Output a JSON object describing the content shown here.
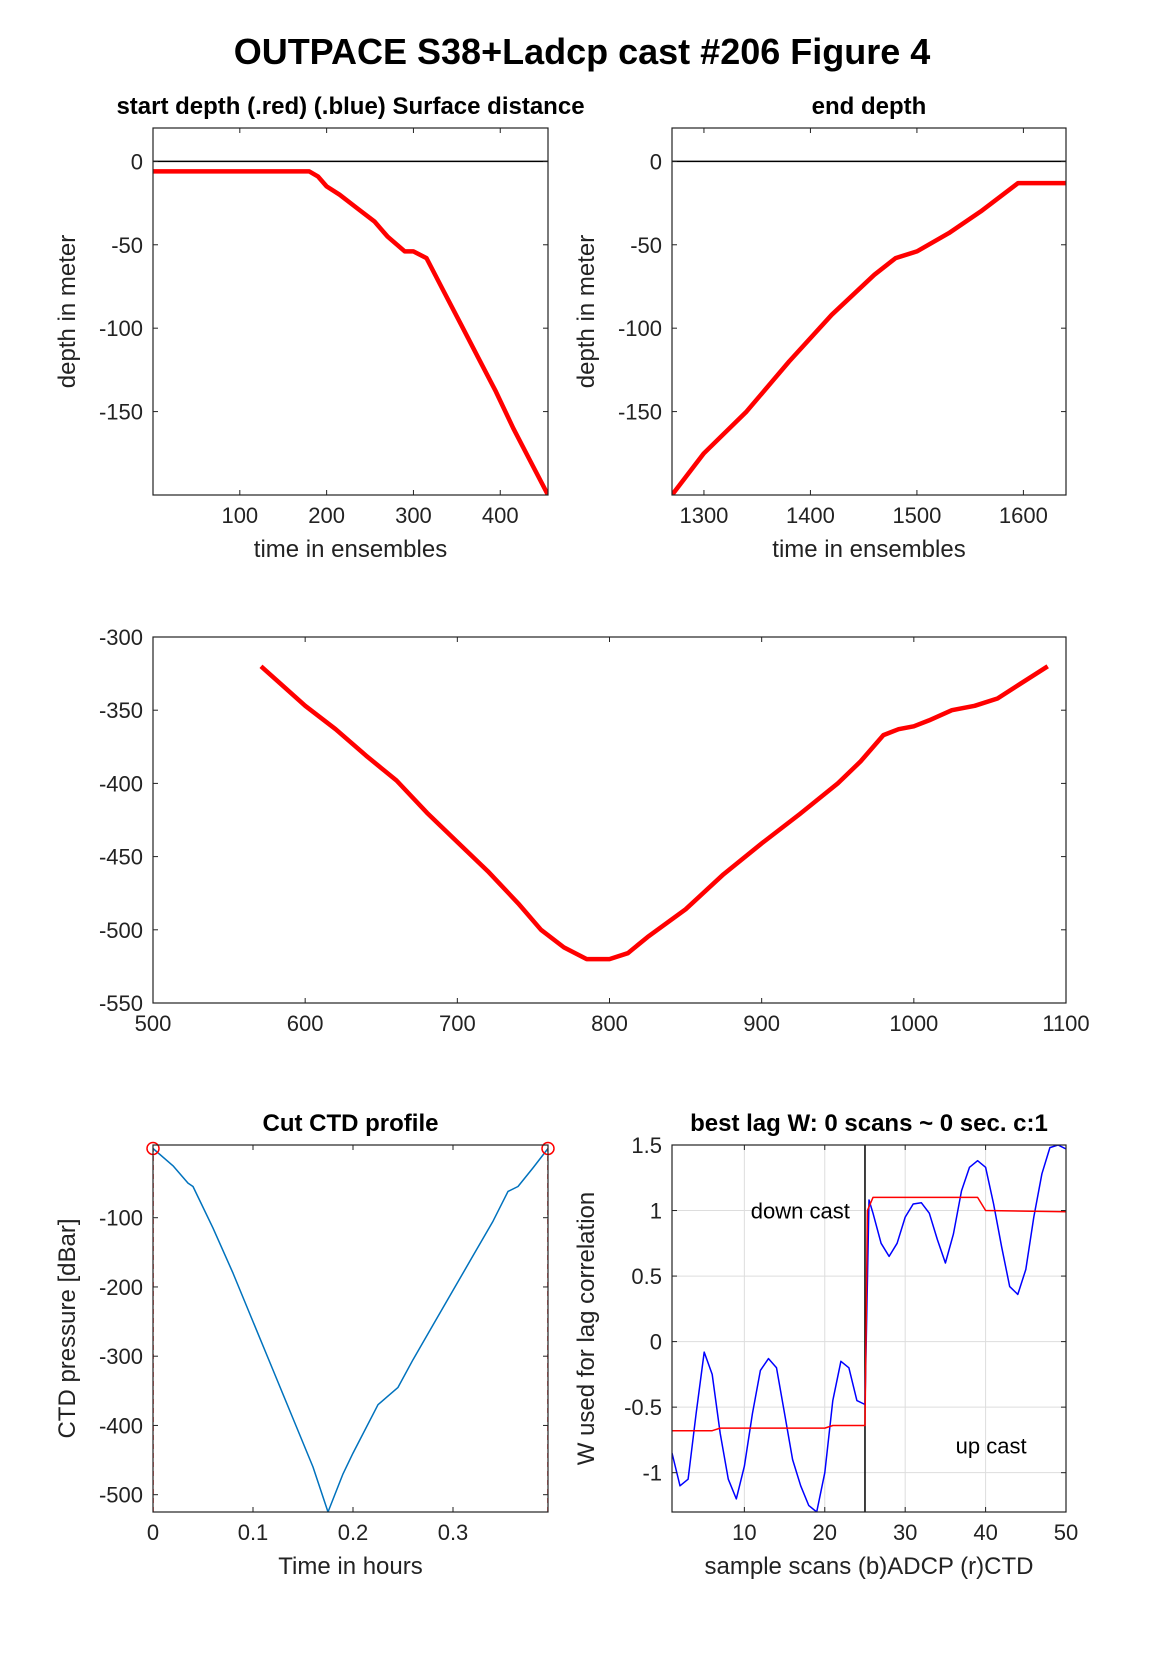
{
  "figure_title": "OUTPACE S38+Ladcp cast #206   Figure 4",
  "chart_data": [
    {
      "type": "line",
      "title": "start depth (.red) (.blue) Surface distance",
      "xlabel": "time in ensembles",
      "ylabel": "depth in meter",
      "xlim": [
        0,
        455
      ],
      "ylim": [
        -200,
        20
      ],
      "xticks": [
        100,
        200,
        300,
        400
      ],
      "yticks": [
        0,
        -50,
        -100,
        -150
      ],
      "hline": 0,
      "series": [
        {
          "color": "#ff0000",
          "x": [
            0,
            180,
            190,
            200,
            215,
            235,
            255,
            270,
            290,
            300,
            315,
            335,
            355,
            375,
            395,
            415,
            435,
            455
          ],
          "y": [
            -6,
            -6,
            -9,
            -15,
            -20,
            -28,
            -36,
            -45,
            -54,
            -54,
            -58,
            -78,
            -98,
            -118,
            -138,
            -160,
            -180,
            -200
          ]
        }
      ]
    },
    {
      "type": "line",
      "title": "end depth",
      "xlabel": "time in ensembles",
      "ylabel": "depth in meter",
      "xlim": [
        1270,
        1640
      ],
      "ylim": [
        -200,
        20
      ],
      "xticks": [
        1300,
        1400,
        1500,
        1600
      ],
      "yticks": [
        0,
        -50,
        -100,
        -150
      ],
      "hline": 0,
      "series": [
        {
          "color": "#ff0000",
          "x": [
            1270,
            1300,
            1340,
            1380,
            1420,
            1460,
            1480,
            1500,
            1530,
            1560,
            1595,
            1640
          ],
          "y": [
            -200,
            -175,
            -150,
            -120,
            -92,
            -68,
            -58,
            -54,
            -43,
            -30,
            -13,
            -13
          ]
        }
      ]
    },
    {
      "type": "line",
      "title": "",
      "xlabel": "",
      "ylabel": "",
      "xlim": [
        500,
        1100
      ],
      "ylim": [
        -550,
        -300
      ],
      "xticks": [
        500,
        600,
        700,
        800,
        900,
        1000,
        1100
      ],
      "yticks": [
        -300,
        -350,
        -400,
        -450,
        -500,
        -550
      ],
      "series": [
        {
          "color": "#ff0000",
          "x": [
            571,
            585,
            600,
            620,
            640,
            660,
            680,
            700,
            720,
            740,
            755,
            770,
            785,
            800,
            812,
            825,
            850,
            875,
            900,
            925,
            950,
            965,
            980,
            990,
            1000,
            1010,
            1025,
            1040,
            1055,
            1070,
            1088
          ],
          "y": [
            -320,
            -333,
            -347,
            -363,
            -381,
            -398,
            -420,
            -440,
            -460,
            -482,
            -500,
            -512,
            -520,
            -520,
            -516,
            -505,
            -486,
            -462,
            -441,
            -421,
            -400,
            -385,
            -367,
            -363,
            -361,
            -357,
            -350,
            -347,
            -342,
            -332,
            -320
          ]
        }
      ]
    },
    {
      "type": "line",
      "title": "Cut CTD profile",
      "xlabel": "Time in hours",
      "ylabel": "CTD pressure [dBar]",
      "xlim": [
        0,
        0.395
      ],
      "ylim": [
        -525,
        5
      ],
      "xticks": [
        0,
        0.1,
        0.2,
        0.3
      ],
      "yticks": [
        -100,
        -200,
        -300,
        -400,
        -500
      ],
      "series": [
        {
          "color": "#0072bd",
          "x": [
            0,
            0.02,
            0.035,
            0.04,
            0.06,
            0.08,
            0.1,
            0.12,
            0.14,
            0.16,
            0.175,
            0.19,
            0.2,
            0.225,
            0.245,
            0.26,
            0.28,
            0.3,
            0.32,
            0.34,
            0.355,
            0.365,
            0.38,
            0.395
          ],
          "y": [
            0,
            -25,
            -50,
            -55,
            -115,
            -180,
            -250,
            -320,
            -390,
            -460,
            -525,
            -470,
            -440,
            -370,
            -345,
            -305,
            -255,
            -205,
            -155,
            -105,
            -62,
            -55,
            -28,
            0
          ]
        },
        {
          "color": "#ff0000",
          "dashed": true,
          "x": [
            0,
            0
          ],
          "y": [
            -525,
            0
          ]
        },
        {
          "color": "#ff0000",
          "dashed": true,
          "x": [
            0.395,
            0.395
          ],
          "y": [
            -525,
            0
          ]
        }
      ],
      "markers": [
        {
          "color": "#ff0000",
          "x": 0,
          "y": 0
        },
        {
          "color": "#ff0000",
          "x": 0.395,
          "y": 0
        }
      ]
    },
    {
      "type": "line",
      "title": "best lag W: 0 scans ~ 0 sec.  c:1",
      "xlabel": "sample scans (b)ADCP (r)CTD",
      "ylabel": "W used for lag correlation",
      "xlim": [
        1,
        50
      ],
      "ylim": [
        -1.3,
        1.5
      ],
      "xticks": [
        10,
        20,
        30,
        40,
        50
      ],
      "yticks": [
        1.5,
        1,
        0.5,
        0,
        -0.5,
        -1
      ],
      "grid": true,
      "vline": 25,
      "annotations": [
        "down cast",
        "up cast"
      ],
      "series": [
        {
          "name": "ADCP",
          "color": "#0000ff",
          "x": [
            1,
            2,
            3,
            4,
            5,
            6,
            7,
            8,
            9,
            10,
            11,
            12,
            13,
            14,
            15,
            16,
            17,
            18,
            19,
            20,
            21,
            22,
            23,
            24,
            25,
            25.5,
            26,
            27,
            28,
            29,
            30,
            31,
            32,
            33,
            34,
            35,
            36,
            37,
            38,
            39,
            40,
            41,
            42,
            43,
            44,
            45,
            46,
            47,
            48,
            49,
            50
          ],
          "y": [
            -0.85,
            -1.1,
            -1.05,
            -0.55,
            -0.08,
            -0.25,
            -0.7,
            -1.05,
            -1.2,
            -0.95,
            -0.55,
            -0.22,
            -0.13,
            -0.2,
            -0.55,
            -0.9,
            -1.1,
            -1.25,
            -1.3,
            -1.0,
            -0.45,
            -0.15,
            -0.2,
            -0.45,
            -0.48,
            1.08,
            0.98,
            0.75,
            0.65,
            0.75,
            0.95,
            1.05,
            1.06,
            0.98,
            0.78,
            0.6,
            0.82,
            1.15,
            1.33,
            1.38,
            1.33,
            1.05,
            0.72,
            0.42,
            0.36,
            0.55,
            0.95,
            1.28,
            1.48,
            1.5,
            1.47
          ]
        },
        {
          "name": "CTD",
          "color": "#ff0000",
          "x": [
            1,
            6,
            7,
            20,
            21,
            25,
            25.3,
            26,
            38,
            39,
            40,
            50
          ],
          "y": [
            -0.68,
            -0.68,
            -0.66,
            -0.66,
            -0.64,
            -0.64,
            1.0,
            1.1,
            1.1,
            1.1,
            1.0,
            0.99
          ]
        }
      ]
    }
  ]
}
